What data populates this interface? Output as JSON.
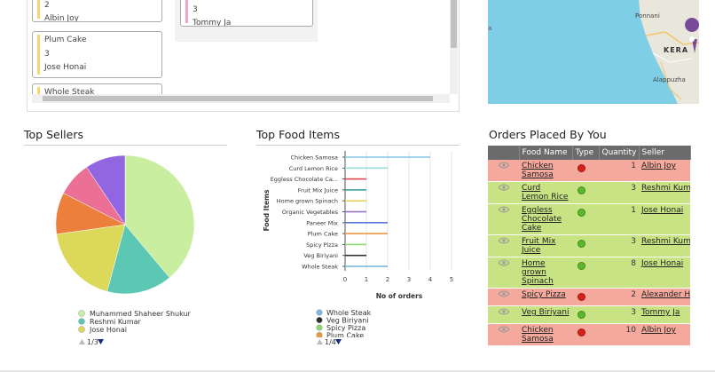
{
  "kanban": {
    "columns": [
      {
        "cards": [
          {
            "quantity": "2",
            "customer": "Albin Joy",
            "color": "#f5d76e"
          },
          {
            "title": "Plum Cake",
            "quantity": "3",
            "customer": "Jose Honai",
            "color": "#f5d76e"
          },
          {
            "title": "Whole Steak",
            "color": "#f5d76e"
          }
        ]
      },
      {
        "cards": [
          {
            "quantity": "3",
            "customer": "Tommy Ja",
            "color": "#f4a3c7"
          }
        ]
      }
    ]
  },
  "map": {
    "labels": [
      "Ponnani",
      "KERA",
      "Alappuzha"
    ]
  },
  "chart_data": [
    {
      "type": "pie",
      "title": "Top Sellers",
      "categories": [
        "Muhammed Shaheer Shukur",
        "Reshmi Kumar",
        "Jose Honai",
        null,
        null,
        null
      ],
      "values": [
        38.9,
        15.3,
        18.6,
        9.7,
        8.1,
        9.4
      ],
      "colors": [
        "#c9eea0",
        "#5cc8b4",
        "#dcd85a",
        "#ec7f3c",
        "#ec7096",
        "#9266e0"
      ],
      "legend_page": "1/3"
    },
    {
      "type": "barh",
      "title": "Top Food Items",
      "categories": [
        "Chicken Samosa",
        "Curd Lemon Rice",
        "Eggless Chocolate Ca...",
        "Fruit Mix Juice",
        "Home grown Spinach",
        "Organic Vegetables",
        "Paneer Mix",
        "Plum Cake",
        "Spicy Pizza",
        "Veg Biriyani",
        "Whole Steak"
      ],
      "values": [
        4,
        2,
        1,
        1,
        1,
        1,
        2,
        2,
        1,
        1,
        2
      ],
      "colors": [
        "#8cc8e8",
        "#9adcd8",
        "#e04848",
        "#3aa0a0",
        "#e8d060",
        "#9a70c8",
        "#5a78d8",
        "#e89840",
        "#8cd870",
        "#303030",
        "#7ab8e0"
      ],
      "xlim": [
        0,
        5
      ],
      "xticks": [
        0,
        1,
        2,
        3,
        4,
        5
      ],
      "grid": true,
      "ylabel": "Food Items",
      "xlabel": "No of orders",
      "legend_order": [
        10,
        9,
        8,
        7
      ],
      "legend_page": "1/4"
    }
  ],
  "orders": {
    "title": "Orders Placed By You",
    "headers": [
      "Food Name",
      "Type",
      "Quantity",
      "Seller"
    ],
    "rows": [
      {
        "food": "Chicken Samosa",
        "type_color": "#d8201a",
        "quantity": "1",
        "seller": "Albin Joy",
        "row_color": "#f4a99c"
      },
      {
        "food": "Curd Lemon Rice",
        "type_color": "#5cb82a",
        "quantity": "3",
        "seller": "Reshmi Kumar",
        "row_color": "#c8e384"
      },
      {
        "food": "Eggless Chocolate Cake",
        "type_color": "#5cb82a",
        "quantity": "1",
        "seller": "Jose Honai",
        "row_color": "#c8e384"
      },
      {
        "food": "Fruit Mix Juice",
        "type_color": "#5cb82a",
        "quantity": "3",
        "seller": "Reshmi Kumar",
        "row_color": "#c8e384"
      },
      {
        "food": "Home grown Spinach",
        "type_color": "#5cb82a",
        "quantity": "8",
        "seller": "Jose Honai",
        "row_color": "#c8e384"
      },
      {
        "food": "Spicy Pizza",
        "type_color": "#d8201a",
        "quantity": "2",
        "seller": "Alexander Hen",
        "row_color": "#f4a99c"
      },
      {
        "food": "Veg Biriyani",
        "type_color": "#5cb82a",
        "quantity": "3",
        "seller": "Tommy Ja",
        "row_color": "#c8e384"
      },
      {
        "food": "Chicken Samosa",
        "type_color": "#d8201a",
        "quantity": "10",
        "seller": "Albin Joy",
        "row_color": "#f4a99c"
      }
    ]
  }
}
